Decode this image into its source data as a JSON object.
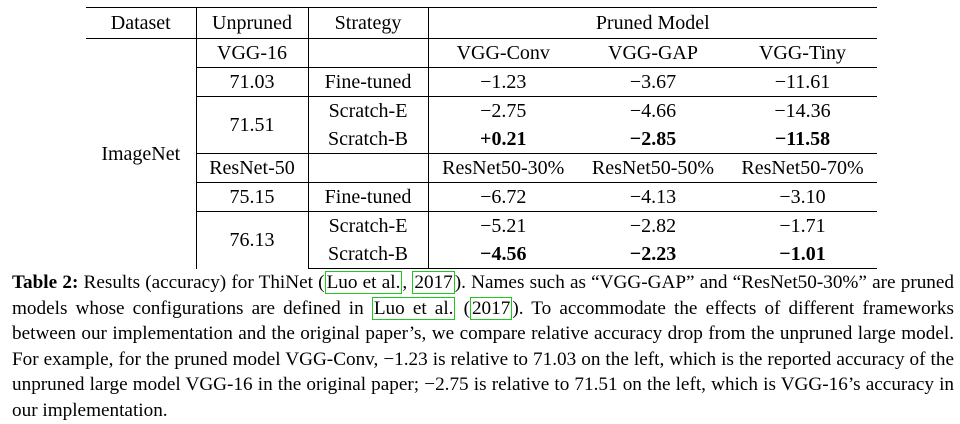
{
  "table": {
    "headers": [
      "Dataset",
      "Unpruned",
      "Strategy",
      "Pruned Model"
    ],
    "dataset": "ImageNet",
    "vgg": {
      "unpruned_model": "VGG-16",
      "pruned_models": [
        "VGG-Conv",
        "VGG-GAP",
        "VGG-Tiny"
      ],
      "rows": [
        {
          "unpruned": "71.03",
          "strategy": "Fine-tuned",
          "values": [
            "−1.23",
            "−3.67",
            "−11.61"
          ]
        },
        {
          "unpruned": "71.51",
          "strategy": "Scratch-E",
          "values": [
            "−2.75",
            "−4.66",
            "−14.36"
          ]
        },
        {
          "unpruned": "71.51",
          "strategy": "Scratch-B",
          "values": [
            "+0.21",
            "−2.85",
            "−11.58"
          ]
        }
      ]
    },
    "resnet": {
      "unpruned_model": "ResNet-50",
      "pruned_models": [
        "ResNet50-30%",
        "ResNet50-50%",
        "ResNet50-70%"
      ],
      "rows": [
        {
          "unpruned": "75.15",
          "strategy": "Fine-tuned",
          "values": [
            "−6.72",
            "−4.13",
            "−3.10"
          ]
        },
        {
          "unpruned": "76.13",
          "strategy": "Scratch-E",
          "values": [
            "−5.21",
            "−2.82",
            "−1.71"
          ]
        },
        {
          "unpruned": "76.13",
          "strategy": "Scratch-B",
          "values": [
            "−4.56",
            "−2.23",
            "−1.01"
          ]
        }
      ]
    }
  },
  "caption": {
    "label": "Table 2:",
    "part1": " Results (accuracy) for ThiNet (",
    "cite1_author": "Luo et al.",
    "cite_sep": ", ",
    "cite1_year": "2017",
    "part2": "). Names such as “VGG-GAP” and “ResNet50-30%” are pruned models whose configurations are defined in ",
    "cite2_author": "Luo et al.",
    "cite2_open": " (",
    "cite2_year": "2017",
    "part3": "). To accommodate the effects of different frameworks between our implementation and the original paper’s, we compare relative accuracy drop from the unpruned large model. For example, for the pruned model VGG-Conv, −1.23 is relative to 71.03 on the left, which is the reported accuracy of the unpruned large model VGG-16 in the original paper; −2.75 is relative to 71.51 on the left, which is VGG-16’s accuracy in our implementation."
  }
}
